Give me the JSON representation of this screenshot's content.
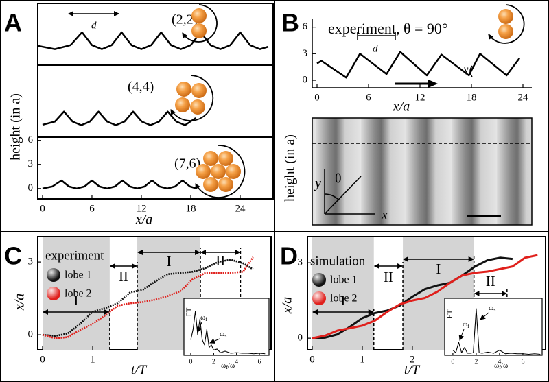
{
  "chart_data": [
    {
      "type": "line",
      "panel": "A",
      "annotations": [
        "(2,2)",
        "d"
      ],
      "color": "#000000",
      "xlim": [
        -0.58,
        28
      ],
      "ylim": [
        -2,
        5.7
      ],
      "x": [
        -0.5,
        1.5,
        3.4,
        4.8,
        6.0,
        7.2,
        8.4,
        9.6,
        10.8,
        12.0,
        13.2,
        14.4,
        15.6,
        16.8,
        18.0,
        19.2,
        20.4,
        21.6,
        22.8,
        24.0,
        25.2,
        26.4,
        27.4
      ],
      "values": [
        0.4,
        0,
        0.5,
        2.1,
        0.5,
        0,
        0.5,
        2.1,
        0.5,
        0,
        0.5,
        2.1,
        0.5,
        0,
        0.5,
        2.1,
        0.5,
        0,
        0.5,
        2.1,
        0.5,
        0,
        0.3
      ]
    },
    {
      "type": "line",
      "annotations": [
        "(4,4)"
      ],
      "color": "#000000",
      "xlim": [
        -0.58,
        28
      ],
      "ylim": [
        -1.5,
        7.5
      ],
      "x": [
        0,
        1.5,
        2.6,
        3.65,
        4.7,
        5.75,
        6.8,
        7.85,
        8.9,
        9.95,
        11.0,
        12.05,
        13.1,
        14.15,
        15.2,
        16.25,
        17.3,
        18.6
      ],
      "values": [
        0.05,
        0.45,
        1.7,
        0.45,
        0,
        0.45,
        1.7,
        0.45,
        0,
        0.45,
        1.7,
        0.45,
        0,
        0.45,
        1.7,
        0.45,
        0,
        0.9
      ]
    },
    {
      "type": "line",
      "annotations": [
        "(7,6)"
      ],
      "color": "#000000",
      "x_label": "x/a",
      "y_label": "height (in a)",
      "xlim": [
        -0.58,
        28
      ],
      "ylim": [
        -1.3,
        6.4
      ],
      "xticks": [
        0,
        6,
        12,
        18,
        24
      ],
      "yticks": [
        0,
        3,
        6
      ],
      "x": [
        0,
        1.2,
        2.3,
        3.2,
        4.15,
        5.1,
        6.0,
        6.9,
        7.85,
        8.8,
        9.7,
        10.6,
        11.5,
        12.4,
        13.3,
        14.2,
        15.15,
        16.1,
        17.0,
        17.9,
        18.7
      ],
      "values": [
        0,
        0.25,
        1.0,
        0.25,
        0,
        0.25,
        1.0,
        0.25,
        0,
        0.25,
        1.0,
        0.25,
        0,
        0.25,
        1.0,
        0.25,
        0,
        0.25,
        1.0,
        0.25,
        0
      ]
    },
    {
      "type": "line",
      "panel": "B",
      "title": "experiment, θ = 90°",
      "annotations": [
        "d",
        "γ"
      ],
      "image_labels": {
        "x": "x",
        "y": "y",
        "angle": "θ"
      },
      "color": "#000000",
      "x_label": "x/a",
      "y_label": "height (in a)",
      "xlim": [
        -0.56,
        25.04
      ],
      "ylim": [
        -0.85,
        6.9
      ],
      "xticks": [
        0,
        6,
        12,
        18,
        24
      ],
      "yticks": [
        0,
        3,
        6
      ],
      "x": [
        0,
        0.5,
        3.4,
        5.0,
        8.1,
        9.7,
        12.8,
        14.5,
        17.7,
        19.0,
        22.1,
        23.6
      ],
      "values": [
        1.9,
        2.2,
        0.3,
        3.0,
        0.7,
        3.2,
        0.55,
        2.9,
        0.55,
        3.0,
        0.55,
        2.5
      ]
    },
    {
      "type": "line",
      "panel": "C",
      "legend_title": "experiment",
      "line_style": "dotted",
      "x_label": "t/T",
      "y_label": "x/a",
      "xlim": [
        -0.096,
        4.56
      ],
      "ylim": [
        -0.62,
        4.05
      ],
      "xticks": [
        0,
        1
      ],
      "yticks": [
        0,
        3
      ],
      "phases": [
        {
          "label": "I",
          "start": 0,
          "end": 1.34
        },
        {
          "label": "II",
          "start": 1.34,
          "end": 1.89
        },
        {
          "label": "I",
          "start": 1.89,
          "end": 3.15
        },
        {
          "label": "II",
          "start": 3.15,
          "end": 3.95
        }
      ],
      "x": [
        0,
        0.25,
        0.5,
        0.75,
        1.0,
        1.25,
        1.5,
        1.75,
        2.0,
        2.25,
        2.5,
        2.75,
        3.0,
        3.25,
        3.5,
        3.75,
        4.0,
        4.2
      ],
      "series": [
        {
          "name": "lobe 1",
          "color": "#111111",
          "values": [
            0,
            -0.05,
            0.05,
            0.45,
            0.95,
            1.1,
            1.3,
            1.75,
            1.85,
            2.2,
            2.5,
            2.55,
            2.6,
            2.75,
            3.0,
            3.1,
            2.95,
            2.7
          ]
        },
        {
          "name": "lobe 2",
          "color": "#e0201c",
          "values": [
            0,
            -0.15,
            -0.1,
            0.2,
            0.45,
            0.8,
            1.2,
            1.3,
            1.35,
            1.45,
            1.6,
            1.8,
            2.3,
            2.55,
            2.55,
            2.55,
            2.6,
            3.2
          ]
        }
      ]
    },
    {
      "type": "line",
      "color": "#000000",
      "y_label": "FT",
      "x_label": {
        "symbol": "ω",
        "sub": "f",
        "rest": "/ω"
      },
      "peaks": [
        {
          "symbol": "ω",
          "sub": "f"
        },
        {
          "symbol": "ω",
          "sub": "s"
        }
      ],
      "xlim": [
        -0.6,
        6.84
      ],
      "ylim": [
        0,
        1.1
      ],
      "xticks": [
        0,
        2,
        4,
        6
      ],
      "x": [
        0,
        0.2,
        0.4,
        0.6,
        0.8,
        1.0,
        1.2,
        1.4,
        1.6,
        1.8,
        2.0,
        2.3,
        2.6,
        3.0,
        3.5,
        4.0,
        4.5,
        5.0,
        5.5,
        6.0,
        6.5
      ],
      "values": [
        0.3,
        0.5,
        0.85,
        0.4,
        0.7,
        0.3,
        0.2,
        0.5,
        0.15,
        0.2,
        0.1,
        0.12,
        0.05,
        0.08,
        0.04,
        0.05,
        0.04,
        0.04,
        0.03,
        0.04,
        0.03
      ]
    },
    {
      "type": "line",
      "panel": "D",
      "legend_title": "simulation",
      "x_label": "t/T",
      "y_label": "x/a",
      "xlim": [
        -0.096,
        4.66
      ],
      "ylim": [
        -0.46,
        4.04
      ],
      "xticks": [
        0,
        1,
        2
      ],
      "yticks": [
        0,
        3
      ],
      "phases": [
        {
          "label": "I",
          "start": 0,
          "end": 1.23
        },
        {
          "label": "II",
          "start": 1.23,
          "end": 1.81
        },
        {
          "label": "I",
          "start": 1.81,
          "end": 3.23
        },
        {
          "label": "II",
          "start": 3.23,
          "end": 3.89
        }
      ],
      "x": [
        0,
        0.25,
        0.5,
        0.75,
        1.0,
        1.25,
        1.5,
        1.75,
        2.0,
        2.25,
        2.5,
        2.75,
        3.0,
        3.25,
        3.5,
        3.75,
        4.0,
        4.25,
        4.5
      ],
      "series": [
        {
          "name": "lobe 1",
          "color": "#111111",
          "values": [
            0,
            0.02,
            0.15,
            0.45,
            0.8,
            1.0,
            1.1,
            1.3,
            1.65,
            1.95,
            2.1,
            2.2,
            2.5,
            2.85,
            3.1,
            3.2,
            3.15,
            null,
            null
          ]
        },
        {
          "name": "lobe 2",
          "color": "#e0201c",
          "values": [
            0,
            0.1,
            0.3,
            0.4,
            0.5,
            0.7,
            1.05,
            1.35,
            1.5,
            1.6,
            1.85,
            2.2,
            2.5,
            2.6,
            2.65,
            2.75,
            2.85,
            3.2,
            3.3
          ]
        }
      ]
    },
    {
      "type": "line",
      "color": "#000000",
      "y_label": "FT",
      "x_label": {
        "symbol": "ω",
        "sub": "f",
        "rest": "/ω"
      },
      "peaks": [
        {
          "symbol": "ω",
          "sub": "f"
        },
        {
          "symbol": "ω",
          "sub": "s"
        }
      ],
      "xlim": [
        -0.7,
        7.65
      ],
      "ylim": [
        0,
        1.1
      ],
      "xticks": [
        0,
        2,
        4,
        6
      ],
      "x": [
        0,
        0.25,
        0.5,
        0.75,
        1.0,
        1.25,
        1.5,
        1.75,
        2.0,
        2.25,
        2.5,
        3.0,
        3.5,
        4.0,
        4.5,
        5.0,
        5.5,
        6.0,
        6.5,
        7.0,
        7.5
      ],
      "values": [
        0.1,
        0.05,
        0.25,
        0.05,
        0.15,
        0.04,
        0.04,
        0.05,
        0.9,
        0.05,
        0.04,
        0.06,
        0.04,
        0.1,
        0.03,
        0.04,
        0.03,
        0.03,
        0.02,
        0.03,
        0.02
      ]
    }
  ]
}
